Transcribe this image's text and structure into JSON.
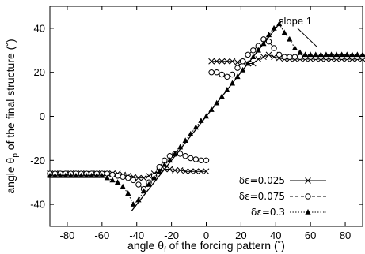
{
  "chart_data": {
    "type": "line",
    "xlabel_text": "angle θ",
    "xlabel_sub": "f",
    "xlabel_rest": " of the forcing pattern (˚)",
    "ylabel_text": "angle θ",
    "ylabel_sub": "p",
    "ylabel_rest": " of the final structure (˚)",
    "xlim": [
      -90,
      90
    ],
    "ylim": [
      -50,
      50
    ],
    "xticks": [
      -80,
      -60,
      -40,
      -20,
      0,
      20,
      40,
      60,
      80
    ],
    "yticks": [
      -40,
      -20,
      0,
      20,
      40
    ],
    "grid": false,
    "legend_position": "bottom-right",
    "annotation": "slope 1",
    "reference_line": {
      "x": [
        -43,
        43
      ],
      "y": [
        -43,
        43
      ]
    },
    "series": [
      {
        "name": "δε=0.025",
        "marker": "x",
        "dash": "solid",
        "x": [
          -90,
          -87,
          -84,
          -81,
          -78,
          -75,
          -72,
          -69,
          -66,
          -63,
          -60,
          -57,
          -54,
          -51,
          -48,
          -45,
          -42,
          -39,
          -36,
          -33,
          -30,
          -27,
          -24,
          -21,
          -18,
          -15,
          -12,
          -9,
          -6,
          -3,
          0,
          3,
          6,
          9,
          12,
          15,
          18,
          21,
          24,
          27,
          30,
          33,
          36,
          39,
          42,
          45,
          48,
          51,
          54,
          57,
          60,
          63,
          66,
          69,
          72,
          75,
          78,
          81,
          84,
          87,
          90
        ],
        "y": [
          -26,
          -26,
          -26,
          -26,
          -26,
          -26,
          -26,
          -26,
          -26,
          -26,
          -26,
          -26,
          -26,
          -26,
          -26.5,
          -27,
          -27.5,
          -28,
          -28,
          -27,
          -26,
          -25,
          -24,
          -24,
          -24.5,
          -24.5,
          -25,
          -25,
          -25,
          -25,
          -25,
          25,
          25,
          25,
          25,
          25,
          24.5,
          24.5,
          24,
          24,
          26,
          27,
          28,
          27,
          26.5,
          26,
          26,
          26,
          26,
          26,
          26,
          26,
          26,
          26,
          26,
          26,
          26,
          26,
          26,
          26,
          26
        ]
      },
      {
        "name": "δε=0.075",
        "marker": "o",
        "dash": "dashed",
        "x": [
          -90,
          -87,
          -84,
          -81,
          -78,
          -75,
          -72,
          -69,
          -66,
          -63,
          -60,
          -57,
          -54,
          -51,
          -48,
          -45,
          -42,
          -39,
          -36,
          -33,
          -30,
          -27,
          -24,
          -21,
          -18,
          -15,
          -12,
          -9,
          -6,
          -3,
          0,
          3,
          6,
          9,
          12,
          15,
          18,
          21,
          24,
          27,
          30,
          33,
          36,
          39,
          42,
          45,
          48,
          51,
          54,
          57,
          60,
          63,
          66,
          69,
          72,
          75,
          78,
          81,
          84,
          87,
          90
        ],
        "y": [
          -26,
          -26,
          -26,
          -26,
          -26,
          -26,
          -26,
          -26,
          -26,
          -26,
          -26,
          -26,
          -26.5,
          -27,
          -27.5,
          -28,
          -29,
          -31,
          -33,
          -30,
          -27,
          -23,
          -20,
          -18,
          -17,
          -17,
          -18,
          -19,
          -19.5,
          -20,
          -20,
          20,
          20,
          19,
          18,
          19,
          22,
          25,
          28,
          30,
          32,
          35,
          34,
          31,
          28,
          27,
          27,
          27,
          27,
          27,
          27,
          27,
          27,
          27,
          27,
          27,
          27,
          27,
          27,
          27,
          27
        ]
      },
      {
        "name": "δε=0.3",
        "marker": "triangle",
        "dash": "dotted",
        "x": [
          -90,
          -87,
          -84,
          -81,
          -78,
          -75,
          -72,
          -69,
          -66,
          -63,
          -60,
          -57,
          -54,
          -51,
          -48,
          -45,
          -42,
          -39,
          -36,
          -33,
          -30,
          -27,
          -24,
          -21,
          -18,
          -15,
          -12,
          -9,
          -6,
          -3,
          0,
          3,
          6,
          9,
          12,
          15,
          18,
          21,
          24,
          27,
          30,
          33,
          36,
          39,
          42,
          45,
          48,
          51,
          54,
          57,
          60,
          63,
          66,
          69,
          72,
          75,
          78,
          81,
          84,
          87,
          90
        ],
        "y": [
          -27,
          -27,
          -27,
          -27,
          -27,
          -27,
          -27,
          -27,
          -27,
          -27,
          -27,
          -28,
          -29,
          -30,
          -32,
          -35,
          -40,
          -38,
          -34,
          -31,
          -28,
          -25,
          -22,
          -20,
          -17,
          -14,
          -11,
          -8,
          -5,
          -2,
          0,
          3,
          6,
          9,
          12,
          15,
          18,
          21,
          24,
          27,
          30,
          33,
          37,
          40,
          42,
          38,
          35,
          31,
          29,
          28,
          28,
          28,
          28,
          28,
          28,
          28,
          28,
          28,
          28,
          28,
          28
        ]
      }
    ]
  }
}
